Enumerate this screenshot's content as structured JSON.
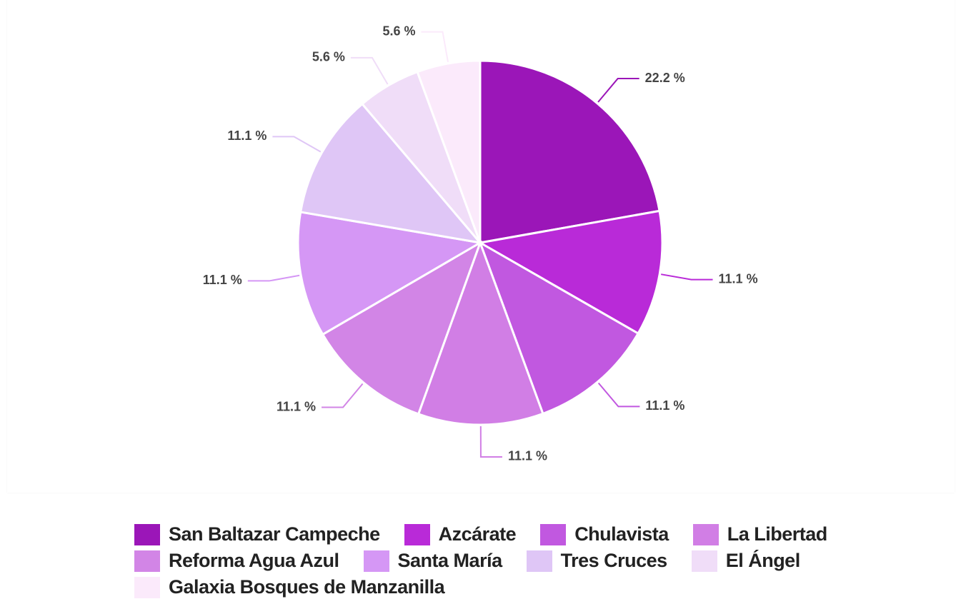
{
  "chart_data": {
    "type": "pie",
    "categories": [
      "San Baltazar Campeche",
      "Azcárate",
      "Chulavista",
      "La Libertad",
      "Reforma Agua Azul",
      "Santa María",
      "Tres Cruces",
      "El Ángel",
      "Galaxia Bosques de Manzanilla"
    ],
    "values": [
      22.2,
      11.1,
      11.1,
      11.1,
      11.1,
      11.1,
      11.1,
      5.6,
      5.6
    ],
    "value_labels": [
      "22.2 %",
      "11.1 %",
      "11.1 %",
      "11.1 %",
      "11.1 %",
      "11.1 %",
      "11.1 %",
      "5.6 %",
      "5.6 %"
    ],
    "colors": [
      "#9b16b8",
      "#b92ad8",
      "#c158e0",
      "#d17ee5",
      "#d285e6",
      "#d597f5",
      "#dfc6f6",
      "#f0ddf8",
      "#fbeafb"
    ],
    "legend": "bottom"
  }
}
